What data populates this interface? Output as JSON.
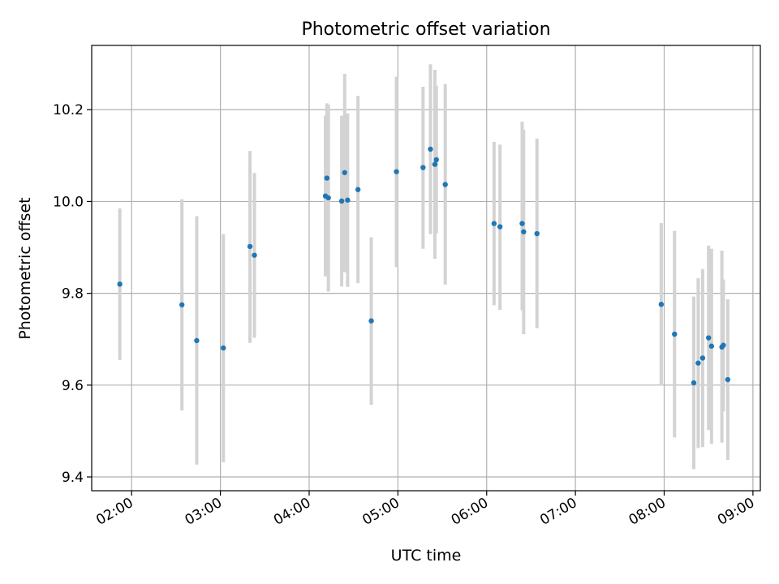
{
  "chart_data": {
    "type": "scatter",
    "title": "Photometric offset variation",
    "xlabel": "UTC time",
    "ylabel": "Photometric offset",
    "xlim": [
      "01:33",
      "09:05"
    ],
    "ylim": [
      9.37,
      10.34
    ],
    "x_ticks": [
      "02:00",
      "03:00",
      "04:00",
      "05:00",
      "06:00",
      "07:00",
      "08:00",
      "09:00"
    ],
    "y_ticks": [
      9.4,
      9.6,
      9.8,
      10.0,
      10.2
    ],
    "y_tick_labels": [
      "9.4",
      "9.6",
      "9.8",
      "10.0",
      "10.2"
    ],
    "grid": true,
    "marker_color": "#1f77b4",
    "errorbar_color": "#d3d3d3",
    "points": [
      {
        "x": "01:52",
        "y": 9.82,
        "lo": 9.655,
        "hi": 9.985
      },
      {
        "x": "02:34",
        "y": 9.775,
        "lo": 9.545,
        "hi": 10.005
      },
      {
        "x": "02:44",
        "y": 9.697,
        "lo": 9.427,
        "hi": 9.968
      },
      {
        "x": "03:02",
        "y": 9.681,
        "lo": 9.432,
        "hi": 9.929
      },
      {
        "x": "03:20",
        "y": 9.902,
        "lo": 9.692,
        "hi": 10.11
      },
      {
        "x": "03:23",
        "y": 9.883,
        "lo": 9.703,
        "hi": 10.062
      },
      {
        "x": "04:11",
        "y": 10.012,
        "lo": 9.837,
        "hi": 10.187
      },
      {
        "x": "04:12",
        "y": 10.051,
        "lo": 9.861,
        "hi": 10.214
      },
      {
        "x": "04:13",
        "y": 10.008,
        "lo": 9.804,
        "hi": 10.211
      },
      {
        "x": "04:22",
        "y": 10.001,
        "lo": 9.815,
        "hi": 10.187
      },
      {
        "x": "04:24",
        "y": 10.063,
        "lo": 9.846,
        "hi": 10.278
      },
      {
        "x": "04:26",
        "y": 10.003,
        "lo": 9.814,
        "hi": 10.192
      },
      {
        "x": "04:33",
        "y": 10.026,
        "lo": 9.822,
        "hi": 10.23
      },
      {
        "x": "04:42",
        "y": 9.74,
        "lo": 9.557,
        "hi": 9.922
      },
      {
        "x": "04:59",
        "y": 10.065,
        "lo": 9.857,
        "hi": 10.272
      },
      {
        "x": "05:17",
        "y": 10.074,
        "lo": 9.897,
        "hi": 10.25
      },
      {
        "x": "05:22",
        "y": 10.114,
        "lo": 9.929,
        "hi": 10.299
      },
      {
        "x": "05:25",
        "y": 10.081,
        "lo": 9.875,
        "hi": 10.287
      },
      {
        "x": "05:26",
        "y": 10.091,
        "lo": 9.931,
        "hi": 10.252
      },
      {
        "x": "05:32",
        "y": 10.037,
        "lo": 9.819,
        "hi": 10.256
      },
      {
        "x": "06:05",
        "y": 9.952,
        "lo": 9.774,
        "hi": 10.13
      },
      {
        "x": "06:09",
        "y": 9.945,
        "lo": 9.764,
        "hi": 10.124
      },
      {
        "x": "06:24",
        "y": 9.952,
        "lo": 9.763,
        "hi": 10.174
      },
      {
        "x": "06:25",
        "y": 9.934,
        "lo": 9.711,
        "hi": 10.156
      },
      {
        "x": "06:34",
        "y": 9.93,
        "lo": 9.724,
        "hi": 10.137
      },
      {
        "x": "07:58",
        "y": 9.776,
        "lo": 9.599,
        "hi": 9.953
      },
      {
        "x": "08:07",
        "y": 9.711,
        "lo": 9.486,
        "hi": 9.936
      },
      {
        "x": "08:20",
        "y": 9.605,
        "lo": 9.417,
        "hi": 9.793
      },
      {
        "x": "08:23",
        "y": 9.648,
        "lo": 9.463,
        "hi": 9.833
      },
      {
        "x": "08:26",
        "y": 9.659,
        "lo": 9.465,
        "hi": 9.853
      },
      {
        "x": "08:30",
        "y": 9.703,
        "lo": 9.502,
        "hi": 9.904
      },
      {
        "x": "08:32",
        "y": 9.685,
        "lo": 9.472,
        "hi": 9.897
      },
      {
        "x": "08:39",
        "y": 9.683,
        "lo": 9.475,
        "hi": 9.893
      },
      {
        "x": "08:40",
        "y": 9.687,
        "lo": 9.543,
        "hi": 9.83
      },
      {
        "x": "08:43",
        "y": 9.612,
        "lo": 9.437,
        "hi": 9.787
      }
    ]
  }
}
